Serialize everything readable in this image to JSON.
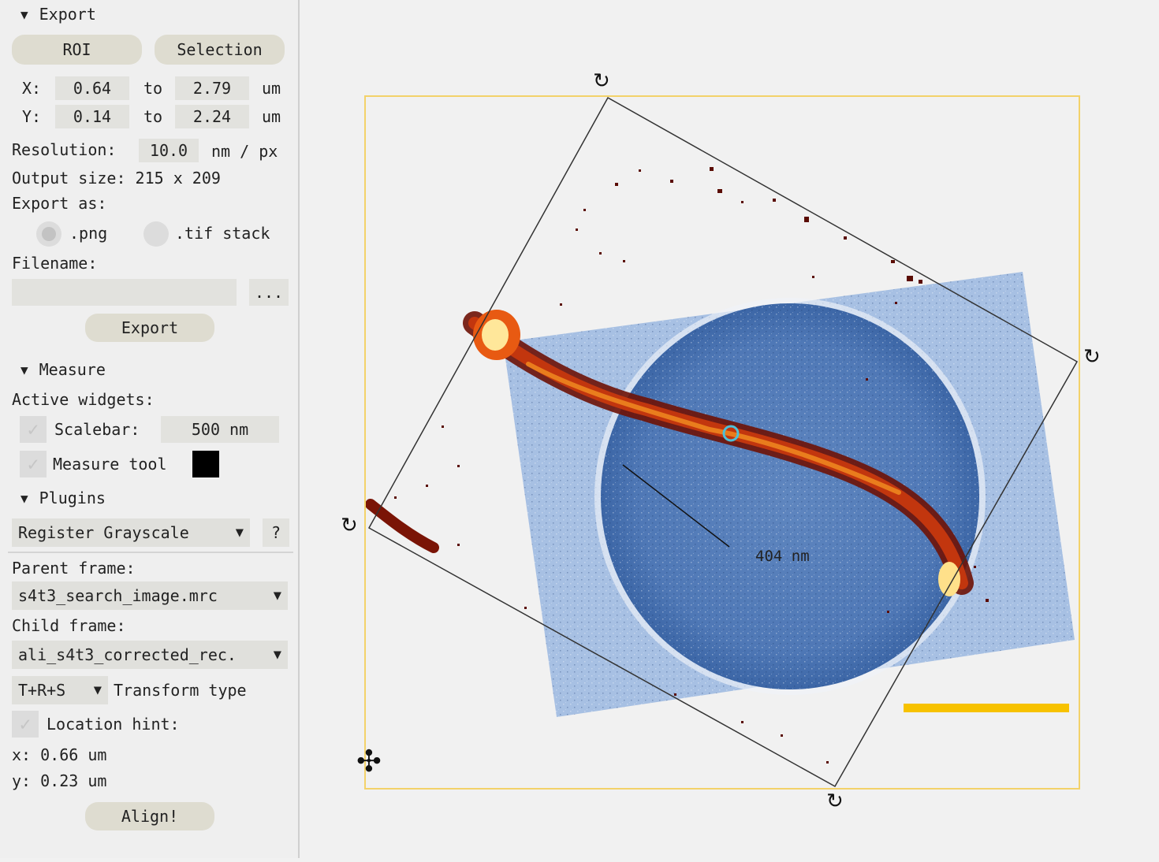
{
  "export": {
    "header": "Export",
    "roi_label": "ROI",
    "selection_label": "Selection",
    "x_label": "X:",
    "x_from": "0.64",
    "x_to": "2.79",
    "y_label": "Y:",
    "y_from": "0.14",
    "y_to": "2.24",
    "to_label": "to",
    "unit": "um",
    "resolution_label": "Resolution:",
    "resolution_value": "10.0",
    "resolution_unit": "nm / px",
    "output_size": "Output size: 215 x 209",
    "export_as_label": "Export as:",
    "png_label": ".png",
    "tif_label": ".tif stack",
    "filename_label": "Filename:",
    "filename_value": "",
    "browse_label": "...",
    "export_button": "Export"
  },
  "measure": {
    "header": "Measure",
    "active_label": "Active widgets:",
    "scalebar_label": "Scalebar:",
    "scalebar_value": "500 nm",
    "measure_tool_label": "Measure tool",
    "measure_color": "#000000"
  },
  "plugins": {
    "header": "Plugins",
    "selected": "Register Grayscale",
    "help_label": "?",
    "parent_label": "Parent frame:",
    "parent_value": "s4t3_search_image.mrc",
    "child_label": "Child frame:",
    "child_value": "ali_s4t3_corrected_rec.",
    "transform_value": "T+R+S",
    "transform_label": "Transform type",
    "location_hint_label": "Location hint:",
    "x_hint": "x: 0.66 um",
    "y_hint": "y: 0.23 um",
    "align_button": "Align!"
  },
  "viewer": {
    "measure_text": "404 nm",
    "roi_color": "#f3d26a",
    "scalebar_color": "#f7c200"
  },
  "icons": {
    "triangle": "▼",
    "check": "✓",
    "rotate": "↻",
    "move": "✣"
  }
}
